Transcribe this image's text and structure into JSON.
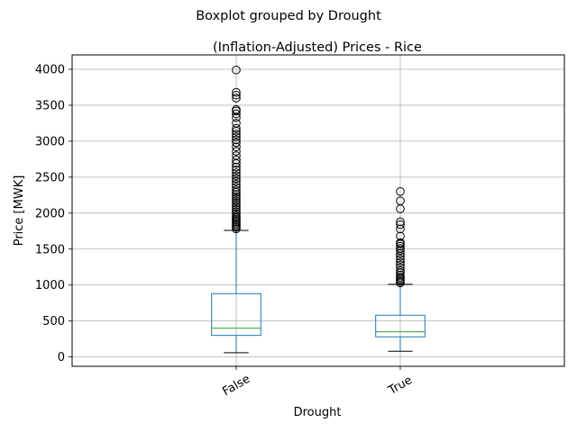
{
  "chart_data": {
    "type": "boxplot",
    "suptitle": "Boxplot grouped by Drought",
    "title": "(Inflation-Adjusted) Prices - Rice",
    "xlabel": "Drought",
    "ylabel": "Price [MWK]",
    "ylim": [
      -130,
      4200
    ],
    "yticks": [
      0,
      500,
      1000,
      1500,
      2000,
      2500,
      3000,
      3500,
      4000
    ],
    "grid": true,
    "colors": {
      "box": "#1f77b4",
      "median": "#2ca02c",
      "whisker": "#1f77b4",
      "cap": "#000000",
      "flier": "#000000",
      "grid": "#b0b0b0"
    },
    "categories": [
      "False",
      "True"
    ],
    "boxes": [
      {
        "name": "False",
        "whislo": 60,
        "q1": 300,
        "med": 400,
        "q3": 880,
        "whishi": 1760,
        "fliers": [
          1780,
          1800,
          1820,
          1840,
          1860,
          1880,
          1900,
          1920,
          1940,
          1960,
          1990,
          2020,
          2050,
          2080,
          2110,
          2140,
          2170,
          2200,
          2230,
          2260,
          2290,
          2320,
          2360,
          2400,
          2440,
          2480,
          2520,
          2560,
          2600,
          2640,
          2690,
          2740,
          2800,
          2860,
          2920,
          2980,
          3020,
          3060,
          3100,
          3140,
          3180,
          3250,
          3330,
          3380,
          3420,
          3440,
          3600,
          3640,
          3680,
          3990
        ]
      },
      {
        "name": "True",
        "whislo": 80,
        "q1": 280,
        "med": 350,
        "q3": 580,
        "whishi": 1010,
        "fliers": [
          1030,
          1050,
          1070,
          1090,
          1110,
          1140,
          1170,
          1200,
          1240,
          1280,
          1320,
          1360,
          1400,
          1440,
          1480,
          1510,
          1540,
          1570,
          1590,
          1680,
          1780,
          1840,
          1880,
          2060,
          2170,
          2300
        ]
      }
    ]
  }
}
